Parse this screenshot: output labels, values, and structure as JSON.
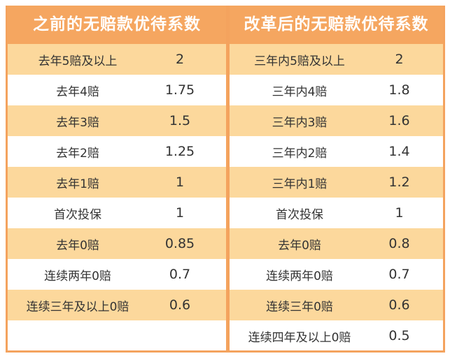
{
  "colors": {
    "header": "#F5A660",
    "stripe": "#FCD89C",
    "border": "#F4A35E",
    "text": "#333333"
  },
  "left": {
    "title": "之前的无赔款优待系数",
    "rows": [
      {
        "label": "去年5赔及以上",
        "value": "2"
      },
      {
        "label": "去年4赔",
        "value": "1.75"
      },
      {
        "label": "去年3赔",
        "value": "1.5"
      },
      {
        "label": "去年2赔",
        "value": "1.25"
      },
      {
        "label": "去年1赔",
        "value": "1"
      },
      {
        "label": "首次投保",
        "value": "1"
      },
      {
        "label": "去年0赔",
        "value": "0.85"
      },
      {
        "label": "连续两年0赔",
        "value": "0.7"
      },
      {
        "label": "连续三年及以上0赔",
        "value": "0.6"
      },
      {
        "label": "",
        "value": ""
      }
    ]
  },
  "right": {
    "title": "改革后的无赔款优待系数",
    "rows": [
      {
        "label": "三年内5赔及以上",
        "value": "2"
      },
      {
        "label": "三年内4赔",
        "value": "1.8"
      },
      {
        "label": "三年内3赔",
        "value": "1.6"
      },
      {
        "label": "三年内2赔",
        "value": "1.4"
      },
      {
        "label": "三年内1赔",
        "value": "1.2"
      },
      {
        "label": "首次投保",
        "value": "1"
      },
      {
        "label": "去年0赔",
        "value": "0.8"
      },
      {
        "label": "连续两年0赔",
        "value": "0.7"
      },
      {
        "label": "连续三年0赔",
        "value": "0.6"
      },
      {
        "label": "连续四年及以上0赔",
        "value": "0.5"
      }
    ]
  }
}
